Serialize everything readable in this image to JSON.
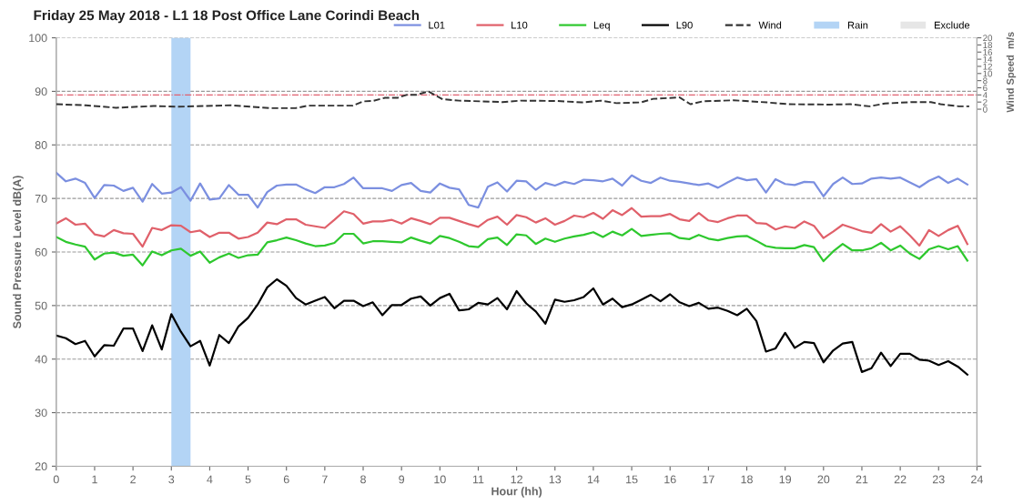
{
  "chart_data": {
    "type": "line",
    "title": "Friday 25 May 2018 - L1 18 Post Office Lane Corindi Beach",
    "xlabel": "Hour (hh)",
    "ylabel": "Sound Pressure Level dB(A)",
    "y2label": "Wind Speed  m/s",
    "x": [
      0,
      0.25,
      0.5,
      0.75,
      1,
      1.25,
      1.5,
      1.75,
      2,
      2.25,
      2.5,
      2.75,
      3,
      3.25,
      3.5,
      3.75,
      4,
      4.25,
      4.5,
      4.75,
      5,
      5.25,
      5.5,
      5.75,
      6,
      6.25,
      6.5,
      6.75,
      7,
      7.25,
      7.5,
      7.75,
      8,
      8.25,
      8.5,
      8.75,
      9,
      9.25,
      9.5,
      9.75,
      10,
      10.25,
      10.5,
      10.75,
      11,
      11.25,
      11.5,
      11.75,
      12,
      12.25,
      12.5,
      12.75,
      13,
      13.25,
      13.5,
      13.75,
      14,
      14.25,
      14.5,
      14.75,
      15,
      15.25,
      15.5,
      15.75,
      16,
      16.25,
      16.5,
      16.75,
      17,
      17.25,
      17.5,
      17.75,
      18,
      18.25,
      18.5,
      18.75,
      19,
      19.25,
      19.5,
      19.75,
      20,
      20.25,
      20.5,
      20.75,
      21,
      21.25,
      21.5,
      21.75,
      22,
      22.25,
      22.5,
      22.75,
      23,
      23.25,
      23.5,
      23.75
    ],
    "series": [
      {
        "name": "L01",
        "color": "#7b8fe0",
        "values": [
          74.8,
          73.2,
          73.7,
          72.9,
          70.1,
          72.5,
          72.4,
          71.4,
          72.0,
          69.4,
          72.7,
          70.9,
          71.1,
          72.1,
          69.6,
          72.8,
          69.8,
          70.0,
          72.5,
          70.7,
          70.7,
          68.3,
          71.2,
          72.4,
          72.6,
          72.6,
          71.7,
          71.0,
          72.1,
          72.1,
          72.7,
          73.9,
          71.9,
          71.9,
          71.9,
          71.4,
          72.5,
          72.9,
          71.4,
          71.1,
          72.8,
          72.0,
          71.7,
          68.8,
          68.3,
          72.2,
          73.0,
          71.3,
          73.3,
          73.2,
          71.6,
          72.9,
          72.4,
          73.1,
          72.7,
          73.5,
          73.4,
          73.2,
          73.7,
          72.4,
          74.3,
          73.3,
          72.9,
          73.9,
          73.3,
          73.1,
          72.8,
          72.5,
          72.8,
          72.0,
          73.0,
          73.9,
          73.4,
          73.6,
          71.1,
          73.6,
          72.7,
          72.5,
          73.1,
          73.0,
          70.4,
          72.7,
          73.9,
          72.7,
          72.8,
          73.7,
          73.9,
          73.7,
          73.9,
          73.0,
          72.1,
          73.3,
          74.1,
          72.9,
          73.7,
          72.6
        ]
      },
      {
        "name": "L10",
        "color": "#e0606a",
        "values": [
          65.3,
          66.3,
          65.1,
          65.3,
          63.3,
          62.9,
          64.1,
          63.5,
          63.4,
          61.0,
          64.5,
          64.1,
          65.0,
          64.9,
          63.7,
          64.0,
          62.8,
          63.6,
          63.6,
          62.5,
          62.8,
          63.6,
          65.5,
          65.2,
          66.1,
          66.1,
          65.1,
          64.8,
          64.5,
          66.0,
          67.6,
          67.1,
          65.3,
          65.7,
          65.7,
          66.0,
          65.3,
          66.3,
          65.8,
          65.2,
          66.4,
          66.4,
          65.8,
          65.2,
          64.7,
          66.0,
          66.6,
          65.1,
          66.9,
          66.5,
          65.5,
          66.3,
          65.1,
          65.8,
          66.8,
          66.5,
          67.3,
          66.2,
          67.8,
          66.9,
          68.2,
          66.6,
          66.7,
          66.7,
          67.1,
          66.1,
          65.8,
          67.3,
          65.9,
          65.6,
          66.3,
          66.8,
          66.8,
          65.4,
          65.3,
          64.2,
          64.8,
          64.5,
          65.7,
          64.9,
          62.6,
          63.8,
          65.1,
          64.5,
          63.9,
          63.6,
          65.2,
          63.8,
          64.8,
          63.1,
          61.2,
          64.1,
          63.0,
          64.1,
          64.9,
          61.5
        ]
      },
      {
        "name": "Leq",
        "color": "#2ec82e",
        "values": [
          62.8,
          61.9,
          61.4,
          61.0,
          58.6,
          59.7,
          59.9,
          59.3,
          59.5,
          57.5,
          60.1,
          59.4,
          60.3,
          60.6,
          59.3,
          60.1,
          58.0,
          59.0,
          59.7,
          58.9,
          59.4,
          59.5,
          61.8,
          62.2,
          62.7,
          62.2,
          61.6,
          61.1,
          61.2,
          61.7,
          63.4,
          63.4,
          61.6,
          62.0,
          62.0,
          61.9,
          61.8,
          62.7,
          62.1,
          61.6,
          63.0,
          62.6,
          61.9,
          61.1,
          60.9,
          62.4,
          62.7,
          61.3,
          63.3,
          63.1,
          61.5,
          62.5,
          61.9,
          62.5,
          62.9,
          63.2,
          63.7,
          62.8,
          63.8,
          63.1,
          64.3,
          63.0,
          63.2,
          63.4,
          63.5,
          62.6,
          62.4,
          63.2,
          62.5,
          62.2,
          62.6,
          62.9,
          63.0,
          62.1,
          61.1,
          60.8,
          60.7,
          60.7,
          61.3,
          60.9,
          58.3,
          60.1,
          61.5,
          60.3,
          60.3,
          60.7,
          61.7,
          60.3,
          61.2,
          59.7,
          58.7,
          60.5,
          61.1,
          60.5,
          61.1,
          58.4
        ]
      },
      {
        "name": "L90",
        "color": "#000000",
        "values": [
          44.4,
          43.9,
          42.8,
          43.4,
          40.5,
          42.6,
          42.5,
          45.7,
          45.7,
          41.5,
          46.3,
          41.8,
          48.4,
          45.1,
          42.4,
          43.4,
          38.8,
          44.5,
          43.0,
          46.1,
          47.7,
          50.2,
          53.4,
          54.9,
          53.7,
          51.4,
          50.2,
          50.9,
          51.6,
          49.5,
          50.9,
          50.9,
          49.9,
          50.6,
          48.2,
          50.1,
          50.1,
          51.3,
          51.7,
          50.0,
          51.4,
          52.2,
          49.1,
          49.3,
          50.5,
          50.2,
          51.4,
          49.3,
          52.7,
          50.4,
          48.9,
          46.6,
          51.1,
          50.7,
          51.0,
          51.6,
          53.2,
          50.2,
          51.3,
          49.7,
          50.2,
          51.1,
          52.0,
          50.8,
          52.1,
          50.6,
          49.9,
          50.5,
          49.4,
          49.6,
          49.0,
          48.2,
          49.4,
          47.1,
          41.4,
          42.0,
          44.9,
          42.1,
          43.2,
          43.0,
          39.4,
          41.6,
          42.9,
          43.2,
          37.6,
          38.3,
          41.2,
          38.7,
          41.0,
          41.0,
          39.9,
          39.7,
          38.9,
          39.6,
          38.6,
          37.1
        ]
      },
      {
        "name": "Wind",
        "color": "#333333",
        "axis": "y2",
        "line_style": "dashed",
        "x": [
          0,
          0.77,
          1.56,
          2.54,
          3.18,
          4.55,
          5.6,
          6.24,
          6.56,
          7.73,
          8.0,
          8.25,
          8.57,
          8.9,
          9.13,
          9.38,
          9.7,
          10.07,
          10.5,
          11.63,
          12.1,
          13.07,
          13.7,
          14.2,
          14.6,
          15.24,
          15.56,
          16.25,
          16.53,
          16.85,
          17.65,
          18.53,
          19.1,
          20.15,
          20.7,
          21.2,
          21.6,
          22.3,
          22.8,
          23.05,
          23.53,
          23.8
        ],
        "values": [
          1.4,
          1.1,
          0.4,
          0.9,
          0.7,
          1.1,
          0.3,
          0.3,
          1.0,
          1.0,
          2.2,
          2.3,
          3.2,
          3.2,
          4.0,
          4.0,
          5.0,
          2.8,
          2.4,
          2.0,
          2.4,
          2.3,
          1.9,
          2.4,
          1.7,
          1.9,
          2.9,
          3.3,
          1.4,
          2.2,
          2.5,
          1.9,
          1.4,
          1.3,
          1.4,
          0.8,
          1.6,
          2.0,
          2.0,
          1.4,
          0.8,
          0.8
        ]
      },
      {
        "name": "Exclude",
        "type": "area",
        "color": "#e6e6e6",
        "values": [
          null,
          null,
          null,
          null,
          null,
          null,
          null,
          null,
          null,
          null,
          null,
          null,
          null,
          null,
          null,
          null,
          null,
          null,
          null,
          null,
          null,
          null,
          null,
          null,
          null,
          null,
          null,
          null,
          null,
          null,
          null,
          null,
          null,
          null,
          null,
          null,
          null,
          null,
          null,
          null,
          null,
          null,
          null,
          null,
          null,
          null,
          null,
          null,
          null,
          null,
          null,
          null,
          null,
          null,
          null,
          null,
          null,
          null,
          null,
          null,
          null,
          null,
          null,
          null,
          null,
          null,
          null,
          null,
          null,
          null,
          null,
          null,
          null,
          null,
          null,
          null,
          null,
          null,
          null,
          null,
          null,
          null,
          null,
          null,
          null,
          null,
          null,
          null,
          null,
          null,
          null,
          null,
          null,
          null,
          null,
          null
        ]
      }
    ],
    "bands": [
      {
        "axis": "x",
        "from": 3,
        "to": 3.5,
        "label": "Rain",
        "color": "#b3d4f5"
      }
    ],
    "ref_lines": [
      {
        "axis": "y2",
        "value": 4,
        "color": "#e06070",
        "line_style": "dashdot"
      }
    ],
    "xlim": [
      0,
      24
    ],
    "xticks": [
      0,
      1,
      2,
      3,
      4,
      5,
      6,
      7,
      8,
      9,
      10,
      11,
      12,
      13,
      14,
      15,
      16,
      17,
      18,
      19,
      20,
      21,
      22,
      23,
      24
    ],
    "ylim": [
      20,
      100
    ],
    "yticks": [
      20,
      30,
      40,
      50,
      60,
      70,
      80,
      90,
      100
    ],
    "y2lim": [
      -100,
      20
    ],
    "y2ticks": [
      {
        "value": -100,
        "label": null
      },
      0,
      2,
      4,
      6,
      8,
      10,
      12,
      14,
      16,
      18,
      20
    ],
    "grid": "y",
    "legend": "top right",
    "marker": "none",
    "line_style": "solid"
  }
}
